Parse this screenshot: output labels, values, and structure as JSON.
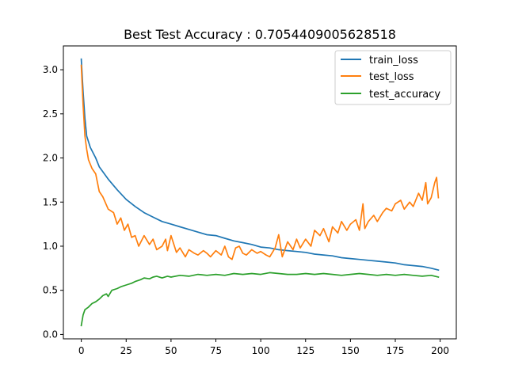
{
  "chart_data": {
    "type": "line",
    "title": "Best Test Accuracy : 0.7054409005628518",
    "xlabel": "",
    "ylabel": "",
    "xlim": [
      -10,
      209
    ],
    "ylim": [
      -0.05,
      3.27
    ],
    "xticks": [
      0,
      25,
      50,
      75,
      100,
      125,
      150,
      175,
      200
    ],
    "yticks": [
      0.0,
      0.5,
      1.0,
      1.5,
      2.0,
      2.5,
      3.0
    ],
    "xtick_labels": [
      "0",
      "25",
      "50",
      "75",
      "100",
      "125",
      "150",
      "175",
      "200"
    ],
    "ytick_labels": [
      "0.0",
      "0.5",
      "1.0",
      "1.5",
      "2.0",
      "2.5",
      "3.0"
    ],
    "grid": false,
    "legend_position": "top-right",
    "series": [
      {
        "name": "train_loss",
        "color": "#1f77b4",
        "x": [
          0,
          1,
          2,
          3,
          5,
          8,
          10,
          15,
          20,
          25,
          30,
          35,
          40,
          45,
          50,
          55,
          60,
          65,
          70,
          75,
          80,
          85,
          90,
          95,
          100,
          105,
          110,
          115,
          120,
          125,
          130,
          135,
          140,
          145,
          150,
          155,
          160,
          165,
          170,
          175,
          180,
          185,
          190,
          195,
          199
        ],
        "y": [
          3.12,
          2.75,
          2.45,
          2.25,
          2.12,
          2.0,
          1.9,
          1.76,
          1.64,
          1.53,
          1.45,
          1.38,
          1.33,
          1.28,
          1.25,
          1.22,
          1.19,
          1.16,
          1.13,
          1.12,
          1.09,
          1.06,
          1.04,
          1.02,
          0.99,
          0.98,
          0.96,
          0.95,
          0.94,
          0.93,
          0.91,
          0.9,
          0.89,
          0.87,
          0.86,
          0.85,
          0.84,
          0.83,
          0.82,
          0.81,
          0.79,
          0.78,
          0.77,
          0.75,
          0.73
        ]
      },
      {
        "name": "test_loss",
        "color": "#ff7f0e",
        "x": [
          0,
          1,
          2,
          3,
          4,
          6,
          8,
          10,
          12,
          15,
          18,
          20,
          22,
          24,
          26,
          28,
          30,
          32,
          35,
          38,
          40,
          42,
          45,
          47,
          48,
          50,
          53,
          55,
          58,
          60,
          63,
          65,
          68,
          70,
          72,
          75,
          78,
          80,
          82,
          84,
          86,
          88,
          90,
          92,
          95,
          98,
          100,
          103,
          105,
          108,
          110,
          112,
          115,
          118,
          120,
          122,
          125,
          128,
          130,
          133,
          135,
          138,
          140,
          143,
          145,
          148,
          150,
          153,
          155,
          157,
          158,
          160,
          163,
          165,
          168,
          170,
          173,
          175,
          178,
          180,
          183,
          185,
          188,
          190,
          192,
          193,
          195,
          197,
          198,
          199
        ],
        "y": [
          3.05,
          2.6,
          2.25,
          2.1,
          1.98,
          1.88,
          1.82,
          1.62,
          1.56,
          1.42,
          1.38,
          1.25,
          1.32,
          1.18,
          1.25,
          1.1,
          1.12,
          1.0,
          1.12,
          1.02,
          1.08,
          0.96,
          1.0,
          1.08,
          0.95,
          1.12,
          0.93,
          0.98,
          0.88,
          0.96,
          0.92,
          0.9,
          0.95,
          0.92,
          0.88,
          0.95,
          0.9,
          1.0,
          0.88,
          0.85,
          0.98,
          1.0,
          0.92,
          0.9,
          0.96,
          0.92,
          0.94,
          0.9,
          0.88,
          0.98,
          1.13,
          0.88,
          1.05,
          0.96,
          1.08,
          0.98,
          1.08,
          1.0,
          1.18,
          1.12,
          1.2,
          1.05,
          1.22,
          1.15,
          1.28,
          1.18,
          1.25,
          1.3,
          1.18,
          1.48,
          1.2,
          1.28,
          1.35,
          1.28,
          1.38,
          1.43,
          1.4,
          1.48,
          1.52,
          1.42,
          1.5,
          1.45,
          1.6,
          1.52,
          1.72,
          1.48,
          1.55,
          1.72,
          1.78,
          1.55
        ]
      },
      {
        "name": "test_accuracy",
        "color": "#2ca02c",
        "x": [
          0,
          1,
          2,
          4,
          6,
          8,
          10,
          12,
          14,
          15,
          17,
          20,
          22,
          25,
          28,
          30,
          33,
          35,
          38,
          40,
          42,
          45,
          48,
          50,
          55,
          60,
          65,
          70,
          75,
          80,
          85,
          90,
          95,
          100,
          105,
          110,
          115,
          120,
          125,
          130,
          135,
          140,
          145,
          150,
          155,
          160,
          165,
          170,
          175,
          180,
          185,
          190,
          195,
          199
        ],
        "y": [
          0.1,
          0.22,
          0.28,
          0.31,
          0.35,
          0.37,
          0.4,
          0.44,
          0.46,
          0.43,
          0.5,
          0.52,
          0.54,
          0.56,
          0.58,
          0.6,
          0.62,
          0.64,
          0.63,
          0.65,
          0.66,
          0.64,
          0.66,
          0.65,
          0.67,
          0.66,
          0.68,
          0.67,
          0.68,
          0.67,
          0.69,
          0.68,
          0.69,
          0.68,
          0.7,
          0.69,
          0.68,
          0.68,
          0.69,
          0.68,
          0.69,
          0.68,
          0.67,
          0.68,
          0.69,
          0.68,
          0.67,
          0.68,
          0.67,
          0.68,
          0.67,
          0.66,
          0.67,
          0.65
        ]
      }
    ]
  }
}
